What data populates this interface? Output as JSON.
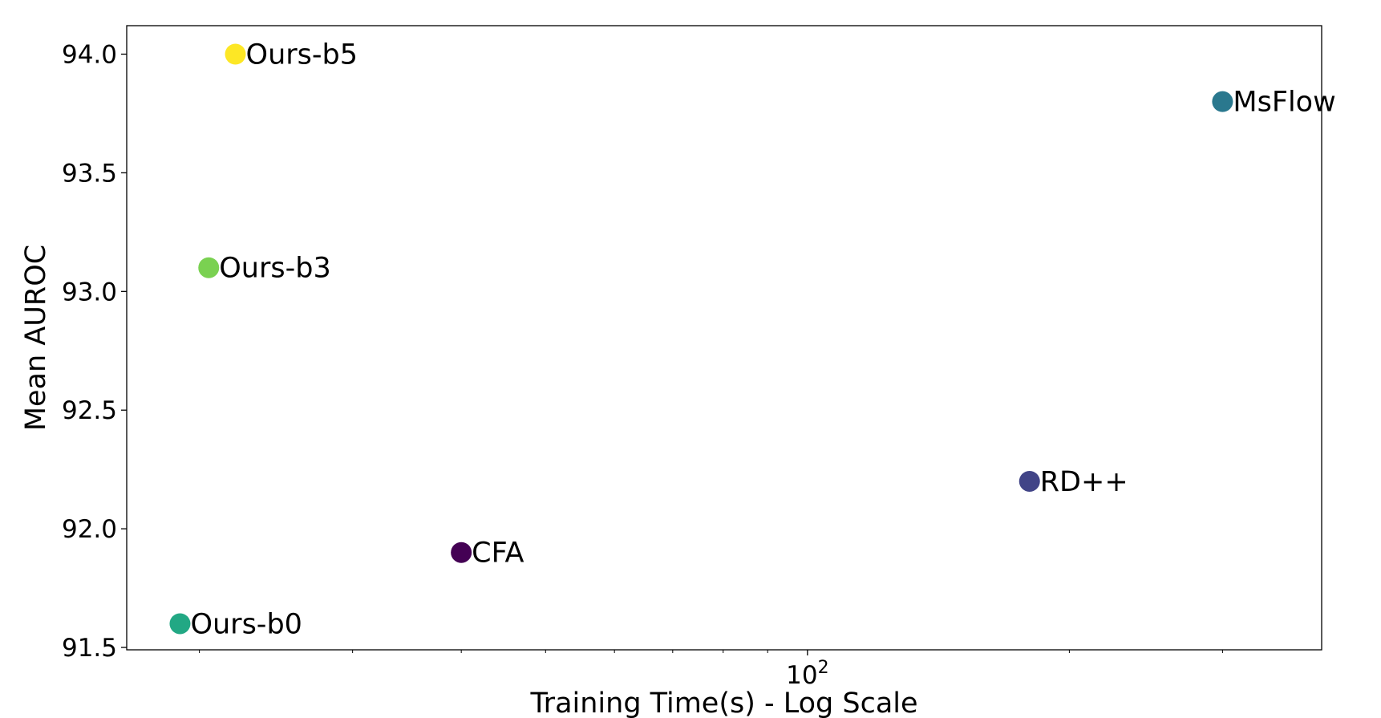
{
  "chart_data": {
    "type": "scatter",
    "title": "",
    "xlabel": "Training Time(s) - Log Scale",
    "ylabel": "Mean AUROC",
    "xscale": "log",
    "xlim": [
      16.5,
      390
    ],
    "ylim": [
      91.49,
      94.12
    ],
    "grid": false,
    "legend": "none",
    "x_ticks": [
      {
        "value": 100,
        "base": "10",
        "exp": "2"
      }
    ],
    "x_minor_ticks": [
      20,
      30,
      40,
      50,
      60,
      70,
      80,
      90,
      200,
      300
    ],
    "y_ticks": [
      {
        "value": 91.5,
        "label": "91.5"
      },
      {
        "value": 92.0,
        "label": "92.0"
      },
      {
        "value": 92.5,
        "label": "92.5"
      },
      {
        "value": 93.0,
        "label": "93.0"
      },
      {
        "value": 93.5,
        "label": "93.5"
      },
      {
        "value": 94.0,
        "label": "94.0"
      }
    ],
    "points": [
      {
        "label": "Ours-b0",
        "x": 19,
        "y": 91.6,
        "color": "#22a884"
      },
      {
        "label": "Ours-b3",
        "x": 20.5,
        "y": 93.1,
        "color": "#7ad151"
      },
      {
        "label": "Ours-b5",
        "x": 22,
        "y": 94.0,
        "color": "#fde725"
      },
      {
        "label": "CFA",
        "x": 40,
        "y": 91.9,
        "color": "#440154"
      },
      {
        "label": "RD++",
        "x": 180,
        "y": 92.2,
        "color": "#414487"
      },
      {
        "label": "MsFlow",
        "x": 300,
        "y": 93.8,
        "color": "#2a788e"
      }
    ]
  }
}
